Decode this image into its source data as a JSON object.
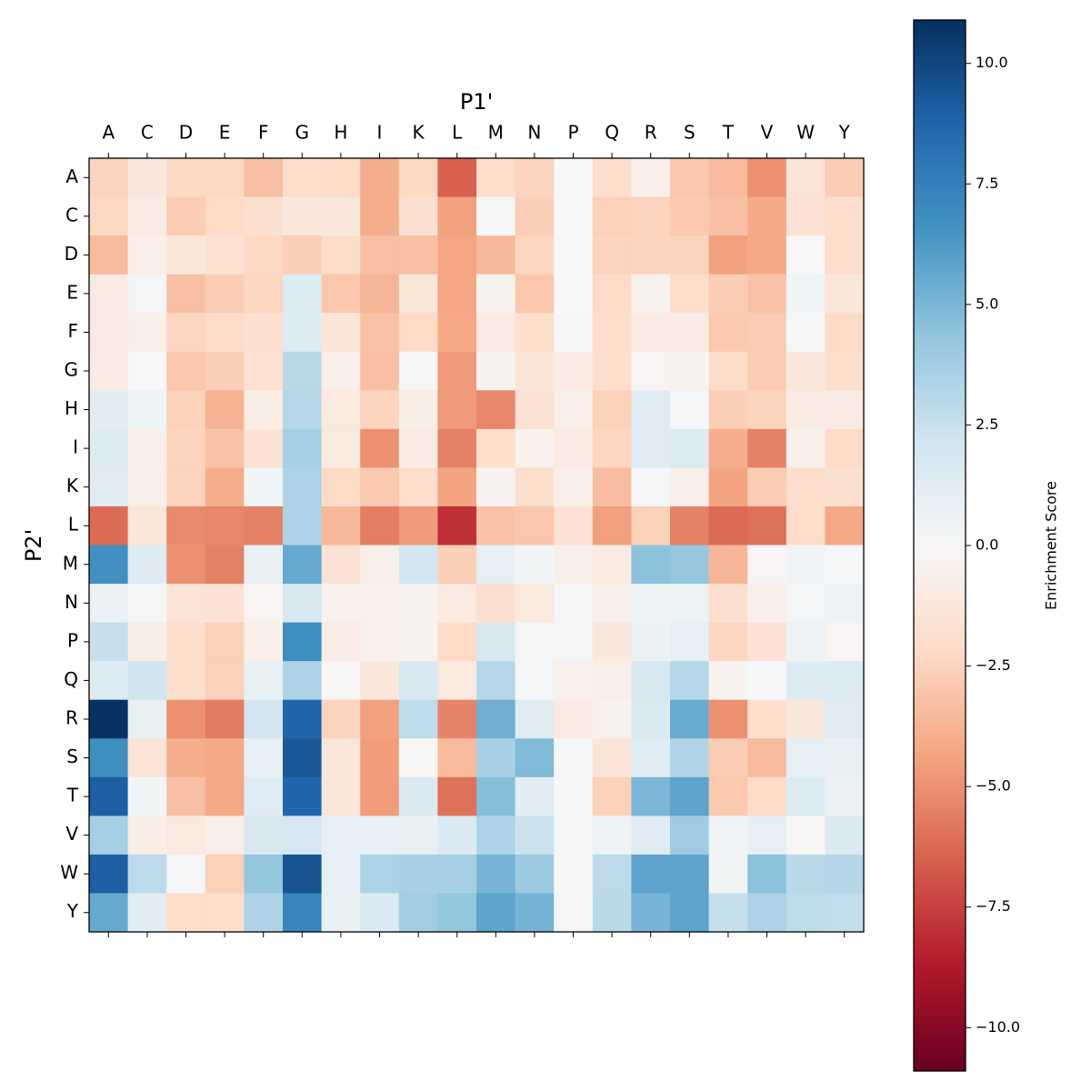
{
  "chart_data": {
    "type": "heatmap",
    "x_label": "P1'",
    "y_label": "P2'",
    "colorbar_label": "Enrichment Score",
    "x": [
      "A",
      "C",
      "D",
      "E",
      "F",
      "G",
      "H",
      "I",
      "K",
      "L",
      "M",
      "N",
      "P",
      "Q",
      "R",
      "S",
      "T",
      "V",
      "W",
      "Y"
    ],
    "y": [
      "A",
      "C",
      "D",
      "E",
      "F",
      "G",
      "H",
      "I",
      "K",
      "L",
      "M",
      "N",
      "P",
      "Q",
      "R",
      "S",
      "T",
      "V",
      "W",
      "Y"
    ],
    "z": [
      [
        -2.5,
        -1.2,
        -2.3,
        -2.3,
        -3.3,
        -2.0,
        -2.2,
        -4.0,
        -2.3,
        -6.5,
        -2.0,
        -2.5,
        0,
        -2.0,
        -0.6,
        -3.0,
        -3.5,
        -5.0,
        -1.5,
        -2.8
      ],
      [
        -2.3,
        -0.9,
        -2.8,
        -2.2,
        -1.8,
        -1.2,
        -1.2,
        -4.0,
        -1.8,
        -4.5,
        0.2,
        -2.7,
        0,
        -2.6,
        -2.5,
        -2.9,
        -3.3,
        -4.2,
        -1.6,
        -2.0
      ],
      [
        -3.5,
        -0.7,
        -1.3,
        -1.7,
        -2.3,
        -2.7,
        -2.1,
        -3.3,
        -3.3,
        -4.3,
        -3.6,
        -2.4,
        0,
        -2.5,
        -2.5,
        -2.5,
        -4.5,
        -4.2,
        0,
        -2.0
      ],
      [
        -1.0,
        0.2,
        -3.3,
        -2.8,
        -2.4,
        1.5,
        -3.0,
        -3.7,
        -1.3,
        -4.3,
        -0.4,
        -3.0,
        0,
        -2.2,
        -0.4,
        -2.0,
        -2.8,
        -3.2,
        0.4,
        -1.3
      ],
      [
        -1.0,
        -0.7,
        -2.4,
        -2.1,
        -1.8,
        1.5,
        -1.4,
        -3.2,
        -2.2,
        -4.2,
        -1.0,
        -1.9,
        0.1,
        -2.0,
        -1.0,
        -0.9,
        -2.9,
        -2.8,
        0.1,
        -2.2
      ],
      [
        -0.9,
        0,
        -3.0,
        -2.7,
        -1.7,
        3.0,
        -0.7,
        -3.3,
        -0.1,
        -4.7,
        -0.3,
        -1.4,
        -1.0,
        -1.9,
        -0.2,
        -0.3,
        -2.1,
        -2.8,
        -1.2,
        -1.9
      ],
      [
        1.2,
        0.5,
        -2.6,
        -3.8,
        -0.8,
        3.1,
        -1.1,
        -2.5,
        -0.8,
        -4.7,
        -5.3,
        -1.6,
        -0.7,
        -2.6,
        1.3,
        0.1,
        -2.7,
        -2.5,
        -0.9,
        -0.9
      ],
      [
        1.5,
        -0.6,
        -2.5,
        -3.2,
        -1.6,
        3.7,
        -1.1,
        -5.0,
        -0.9,
        -5.5,
        -1.9,
        -0.5,
        -1.0,
        -2.4,
        1.3,
        1.5,
        -4.0,
        -5.5,
        -0.6,
        -2.2
      ],
      [
        1.3,
        -0.6,
        -2.5,
        -4.0,
        0.4,
        3.4,
        -2.2,
        -2.9,
        -2.0,
        -4.4,
        -0.3,
        -1.9,
        -0.6,
        -3.4,
        0.1,
        -0.6,
        -4.4,
        -2.8,
        -2.0,
        -1.8
      ],
      [
        -6.2,
        -1.3,
        -5.2,
        -5.3,
        -5.5,
        3.4,
        -3.6,
        -5.6,
        -4.7,
        -8.0,
        -3.2,
        -3.0,
        -1.6,
        -4.5,
        -2.6,
        -5.5,
        -6.2,
        -6.0,
        -2.0,
        -4.2
      ],
      [
        6.7,
        1.4,
        -5.0,
        -5.5,
        0.8,
        5.6,
        -1.6,
        -0.6,
        2.0,
        -2.7,
        1.0,
        0.3,
        -0.6,
        -1.0,
        4.5,
        4.2,
        -3.7,
        -0.2,
        0.4,
        0.1
      ],
      [
        0.7,
        0.1,
        -1.5,
        -1.6,
        -0.2,
        1.8,
        -0.5,
        -0.5,
        -0.3,
        -1.0,
        -1.8,
        -1.1,
        0.1,
        -0.6,
        0.5,
        0.6,
        -1.8,
        -0.6,
        0.2,
        0.5
      ],
      [
        2.5,
        -0.8,
        -1.9,
        -2.6,
        -0.7,
        6.8,
        -0.8,
        -0.5,
        -0.3,
        -2.2,
        1.8,
        0.2,
        0.1,
        -1.2,
        0.7,
        1.0,
        -2.4,
        -1.6,
        0.6,
        -0.2
      ],
      [
        1.5,
        2.2,
        -1.9,
        -2.6,
        0.8,
        3.4,
        -0.1,
        -1.2,
        1.8,
        -1.1,
        3.1,
        0.2,
        -0.5,
        -0.6,
        1.8,
        3.1,
        -0.3,
        0.1,
        1.4,
        1.5
      ],
      [
        10.8,
        0.8,
        -5.0,
        -5.7,
        2.0,
        8.7,
        -2.5,
        -4.5,
        2.8,
        -5.4,
        5.3,
        1.3,
        -1.0,
        -0.4,
        1.7,
        5.5,
        -5.0,
        -1.9,
        -1.2,
        1.3
      ],
      [
        6.8,
        -1.5,
        -4.0,
        -4.2,
        0.9,
        9.3,
        -1.3,
        -4.6,
        -0.1,
        -3.5,
        3.6,
        4.8,
        0.1,
        -1.4,
        1.3,
        3.3,
        -2.8,
        -3.5,
        1.0,
        0.8
      ],
      [
        9.0,
        0.3,
        -3.3,
        -4.2,
        1.3,
        8.7,
        -1.3,
        -4.6,
        1.6,
        -6.0,
        4.7,
        1.2,
        0.1,
        -2.6,
        5.0,
        5.8,
        -2.9,
        -2.2,
        1.5,
        0.7
      ],
      [
        3.7,
        -0.8,
        -1.1,
        -0.7,
        1.8,
        1.9,
        1.0,
        0.9,
        0.8,
        1.6,
        3.4,
        2.4,
        0.1,
        0.5,
        1.3,
        3.9,
        0.4,
        1.0,
        -0.1,
        1.6
      ],
      [
        9.0,
        2.9,
        0.2,
        -2.6,
        4.3,
        9.5,
        1.0,
        3.5,
        3.6,
        3.6,
        5.1,
        4.0,
        0.1,
        2.9,
        5.8,
        5.8,
        0.3,
        4.5,
        3.0,
        3.2
      ],
      [
        5.6,
        1.2,
        -2.0,
        -2.0,
        3.4,
        7.2,
        0.8,
        1.6,
        3.8,
        4.3,
        5.8,
        5.2,
        0.1,
        3.0,
        5.1,
        5.8,
        2.6,
        3.4,
        2.8,
        2.7
      ]
    ],
    "clim": [
      -10.9,
      10.9
    ],
    "colormap": [
      "#67001f",
      "#b2182b",
      "#d6604d",
      "#f4a582",
      "#fddbc7",
      "#f7f7f7",
      "#d1e5f0",
      "#92c5de",
      "#4393c3",
      "#2166ac",
      "#053061"
    ],
    "cticks": [
      {
        "value": -10,
        "label": "−10.0"
      },
      {
        "value": -7.5,
        "label": "−7.5"
      },
      {
        "value": -5,
        "label": "−5.0"
      },
      {
        "value": -2.5,
        "label": "−2.5"
      },
      {
        "value": 0,
        "label": "0.0"
      },
      2.5,
      {
        "value": 5,
        "label": "5.0"
      },
      7.5,
      {
        "value": 10,
        "label": "10.0"
      }
    ]
  }
}
